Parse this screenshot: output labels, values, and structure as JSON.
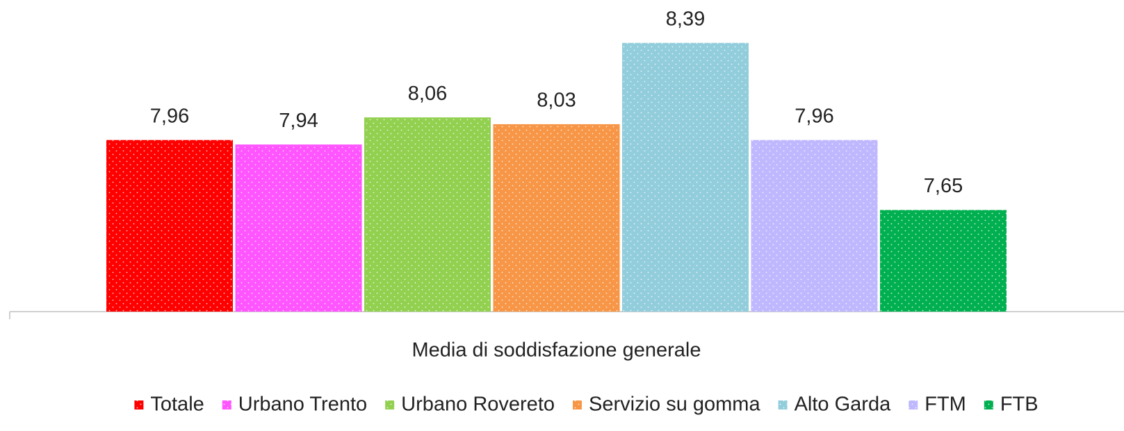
{
  "chart_data": {
    "type": "bar",
    "categories": [
      "Media di soddisfazione generale"
    ],
    "series": [
      {
        "name": "Totale",
        "color": "#ff0000",
        "values": [
          7.96
        ],
        "value_labels": [
          "7,96"
        ]
      },
      {
        "name": "Urbano Trento",
        "color": "#ff55ff",
        "values": [
          7.94
        ],
        "value_labels": [
          "7,94"
        ]
      },
      {
        "name": "Urbano Rovereto",
        "color": "#92d050",
        "values": [
          8.06
        ],
        "value_labels": [
          "8,06"
        ]
      },
      {
        "name": "Servizio su gomma",
        "color": "#f79646",
        "values": [
          8.03
        ],
        "value_labels": [
          "8,03"
        ]
      },
      {
        "name": "Alto Garda",
        "color": "#92cddc",
        "values": [
          8.39
        ],
        "value_labels": [
          "8,39"
        ]
      },
      {
        "name": "FTM",
        "color": "#bfb8ff",
        "values": [
          7.96
        ],
        "value_labels": [
          "7,96"
        ]
      },
      {
        "name": "FTB",
        "color": "#00b050",
        "values": [
          7.65
        ],
        "value_labels": [
          "7,65"
        ]
      }
    ],
    "ylim": [
      7.2,
      8.5
    ],
    "legend": "bottom"
  }
}
